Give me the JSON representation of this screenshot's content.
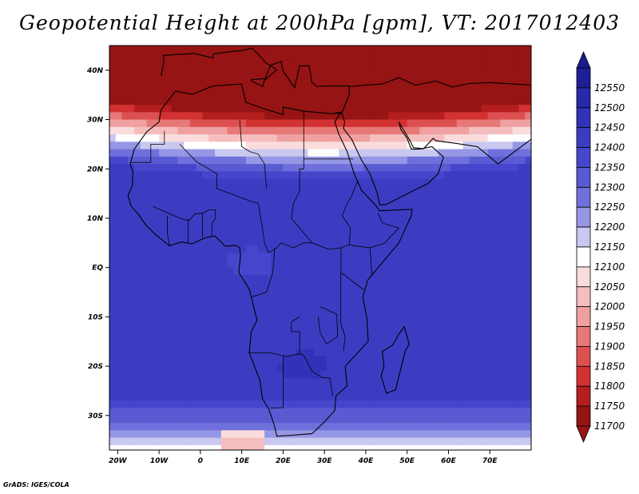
{
  "title": "Geopotential Height at 200hPa [gpm], VT: 2017012403",
  "credit": "GrADS: IGES/COLA",
  "map": {
    "type": "contour_map",
    "variable": "Geopotential Height at 200hPa",
    "units": "gpm",
    "valid_time": "2017012403",
    "lon_range": [
      -22,
      80
    ],
    "lat_range": [
      -37,
      45
    ],
    "lon_ticks": [
      {
        "value": -20,
        "label": "20W"
      },
      {
        "value": -10,
        "label": "10W"
      },
      {
        "value": 0,
        "label": "0"
      },
      {
        "value": 10,
        "label": "10E"
      },
      {
        "value": 20,
        "label": "20E"
      },
      {
        "value": 30,
        "label": "30E"
      },
      {
        "value": 40,
        "label": "40E"
      },
      {
        "value": 50,
        "label": "50E"
      },
      {
        "value": 60,
        "label": "60E"
      },
      {
        "value": 70,
        "label": "70E"
      }
    ],
    "lat_ticks": [
      {
        "value": 40,
        "label": "40N"
      },
      {
        "value": 30,
        "label": "30N"
      },
      {
        "value": 20,
        "label": "20N"
      },
      {
        "value": 10,
        "label": "10N"
      },
      {
        "value": 0,
        "label": "EQ"
      },
      {
        "value": -10,
        "label": "10S"
      },
      {
        "value": -20,
        "label": "20S"
      },
      {
        "value": -30,
        "label": "30S"
      }
    ]
  },
  "legend": {
    "levels": [
      12550,
      12500,
      12450,
      12400,
      12350,
      12300,
      12250,
      12200,
      12150,
      12100,
      12050,
      12000,
      11950,
      11900,
      11850,
      11800,
      11750,
      11700
    ],
    "colors": [
      "#1e1e96",
      "#2828aa",
      "#3232b9",
      "#3c3cc3",
      "#4646cd",
      "#5a5ad2",
      "#7070dc",
      "#9696e6",
      "#c8c8f0",
      "#ffffff",
      "#fadcdc",
      "#f5bebe",
      "#f0a0a0",
      "#e67878",
      "#dc5050",
      "#d23232",
      "#b41e1e",
      "#961414"
    ]
  }
}
